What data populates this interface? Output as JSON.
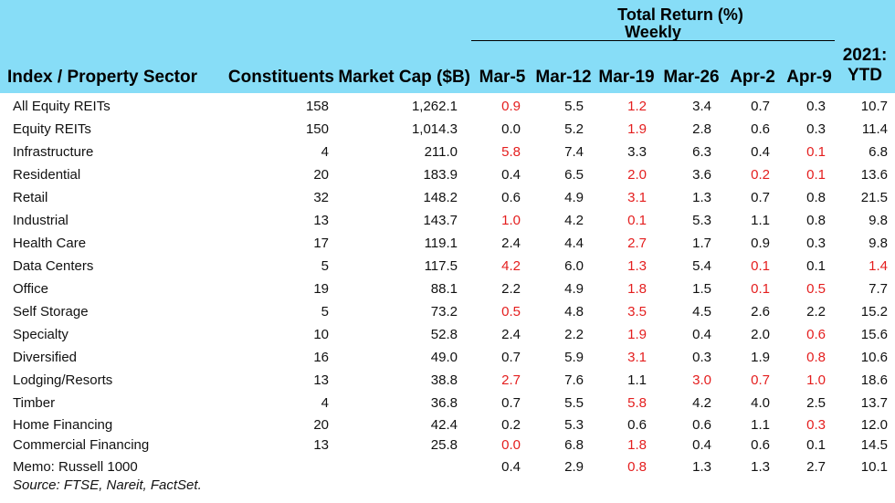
{
  "chart_data": {
    "type": "table",
    "group_header": "Total Return (%)",
    "group_subheader": "Weekly",
    "columns": {
      "sector": "Index / Property Sector",
      "constituents": "Constituents",
      "market_cap": "Market Cap ($B)",
      "weeks": [
        "Mar-5",
        "Mar-12",
        "Mar-19",
        "Mar-26",
        "Apr-2",
        "Apr-9"
      ],
      "ytd_line1": "2021:",
      "ytd_line2": "YTD"
    },
    "rows": [
      {
        "name": "All Equity REITs",
        "constituents": "158",
        "market_cap": "1,262.1",
        "returns": [
          "0.9",
          "5.5",
          "1.2",
          "3.4",
          "0.7",
          "0.3",
          "10.7"
        ],
        "negative": [
          true,
          false,
          true,
          false,
          false,
          false,
          false
        ]
      },
      {
        "name": "Equity REITs",
        "constituents": "150",
        "market_cap": "1,014.3",
        "returns": [
          "0.0",
          "5.2",
          "1.9",
          "2.8",
          "0.6",
          "0.3",
          "11.4"
        ],
        "negative": [
          false,
          false,
          true,
          false,
          false,
          false,
          false
        ]
      },
      {
        "name": "Infrastructure",
        "constituents": "4",
        "market_cap": "211.0",
        "returns": [
          "5.8",
          "7.4",
          "3.3",
          "6.3",
          "0.4",
          "0.1",
          "6.8"
        ],
        "negative": [
          true,
          false,
          false,
          false,
          false,
          true,
          false
        ]
      },
      {
        "name": "Residential",
        "constituents": "20",
        "market_cap": "183.9",
        "returns": [
          "0.4",
          "6.5",
          "2.0",
          "3.6",
          "0.2",
          "0.1",
          "13.6"
        ],
        "negative": [
          false,
          false,
          true,
          false,
          true,
          true,
          false
        ]
      },
      {
        "name": "Retail",
        "constituents": "32",
        "market_cap": "148.2",
        "returns": [
          "0.6",
          "4.9",
          "3.1",
          "1.3",
          "0.7",
          "0.8",
          "21.5"
        ],
        "negative": [
          false,
          false,
          true,
          false,
          false,
          false,
          false
        ]
      },
      {
        "name": "Industrial",
        "constituents": "13",
        "market_cap": "143.7",
        "returns": [
          "1.0",
          "4.2",
          "0.1",
          "5.3",
          "1.1",
          "0.8",
          "9.8"
        ],
        "negative": [
          true,
          false,
          true,
          false,
          false,
          false,
          false
        ]
      },
      {
        "name": "Health Care",
        "constituents": "17",
        "market_cap": "119.1",
        "returns": [
          "2.4",
          "4.4",
          "2.7",
          "1.7",
          "0.9",
          "0.3",
          "9.8"
        ],
        "negative": [
          false,
          false,
          true,
          false,
          false,
          false,
          false
        ]
      },
      {
        "name": "Data Centers",
        "constituents": "5",
        "market_cap": "117.5",
        "returns": [
          "4.2",
          "6.0",
          "1.3",
          "5.4",
          "0.1",
          "0.1",
          "1.4"
        ],
        "negative": [
          true,
          false,
          true,
          false,
          true,
          false,
          true
        ]
      },
      {
        "name": "Office",
        "constituents": "19",
        "market_cap": "88.1",
        "returns": [
          "2.2",
          "4.9",
          "1.8",
          "1.5",
          "0.1",
          "0.5",
          "7.7"
        ],
        "negative": [
          false,
          false,
          true,
          false,
          true,
          true,
          false
        ]
      },
      {
        "name": "Self Storage",
        "constituents": "5",
        "market_cap": "73.2",
        "returns": [
          "0.5",
          "4.8",
          "3.5",
          "4.5",
          "2.6",
          "2.2",
          "15.2"
        ],
        "negative": [
          true,
          false,
          true,
          false,
          false,
          false,
          false
        ]
      },
      {
        "name": "Specialty",
        "constituents": "10",
        "market_cap": "52.8",
        "returns": [
          "2.4",
          "2.2",
          "1.9",
          "0.4",
          "2.0",
          "0.6",
          "15.6"
        ],
        "negative": [
          false,
          false,
          true,
          false,
          false,
          true,
          false
        ]
      },
      {
        "name": "Diversified",
        "constituents": "16",
        "market_cap": "49.0",
        "returns": [
          "0.7",
          "5.9",
          "3.1",
          "0.3",
          "1.9",
          "0.8",
          "10.6"
        ],
        "negative": [
          false,
          false,
          true,
          false,
          false,
          true,
          false
        ]
      },
      {
        "name": "Lodging/Resorts",
        "constituents": "13",
        "market_cap": "38.8",
        "returns": [
          "2.7",
          "7.6",
          "1.1",
          "3.0",
          "0.7",
          "1.0",
          "18.6"
        ],
        "negative": [
          true,
          false,
          false,
          true,
          true,
          true,
          false
        ]
      },
      {
        "name": "Timber",
        "constituents": "4",
        "market_cap": "36.8",
        "returns": [
          "0.7",
          "5.5",
          "5.8",
          "4.2",
          "4.0",
          "2.5",
          "13.7"
        ],
        "negative": [
          false,
          false,
          true,
          false,
          false,
          false,
          false
        ]
      },
      {
        "name": "Home Financing",
        "constituents": "20",
        "market_cap": "42.4",
        "returns": [
          "0.2",
          "5.3",
          "0.6",
          "0.6",
          "1.1",
          "0.3",
          "12.0"
        ],
        "negative": [
          false,
          false,
          false,
          false,
          false,
          true,
          false
        ]
      },
      {
        "name": "Commercial Financing",
        "constituents": "13",
        "market_cap": "25.8",
        "returns": [
          "0.0",
          "6.8",
          "1.8",
          "0.4",
          "0.6",
          "0.1",
          "14.5"
        ],
        "negative": [
          true,
          false,
          true,
          false,
          false,
          false,
          false
        ]
      },
      {
        "name": "Memo: Russell 1000",
        "constituents": "",
        "market_cap": "",
        "returns": [
          "0.4",
          "2.9",
          "0.8",
          "1.3",
          "1.3",
          "2.7",
          "10.1"
        ],
        "negative": [
          false,
          false,
          true,
          false,
          false,
          false,
          false
        ]
      }
    ],
    "source": "Source: FTSE, Nareit, FactSet."
  }
}
